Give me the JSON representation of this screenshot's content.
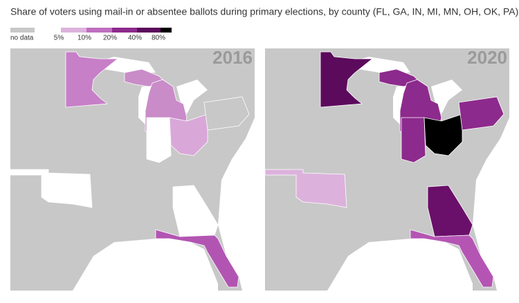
{
  "title": "Share of voters using mail-in or absentee ballots during primary elections, by county (FL, GA, IN, MI, MN, OH, OK, PA)",
  "legend": {
    "no_data": "no data",
    "thresholds": [
      "5%",
      "10%",
      "20%",
      "40%",
      "80%"
    ],
    "colors": [
      "#c8c8c8",
      "#ffffff",
      "#dcb2dc",
      "#bf6fbf",
      "#8d2a8d",
      "#5c0a5c",
      "#000000"
    ]
  },
  "panels": [
    {
      "label": "2016"
    },
    {
      "label": "2020"
    }
  ]
}
